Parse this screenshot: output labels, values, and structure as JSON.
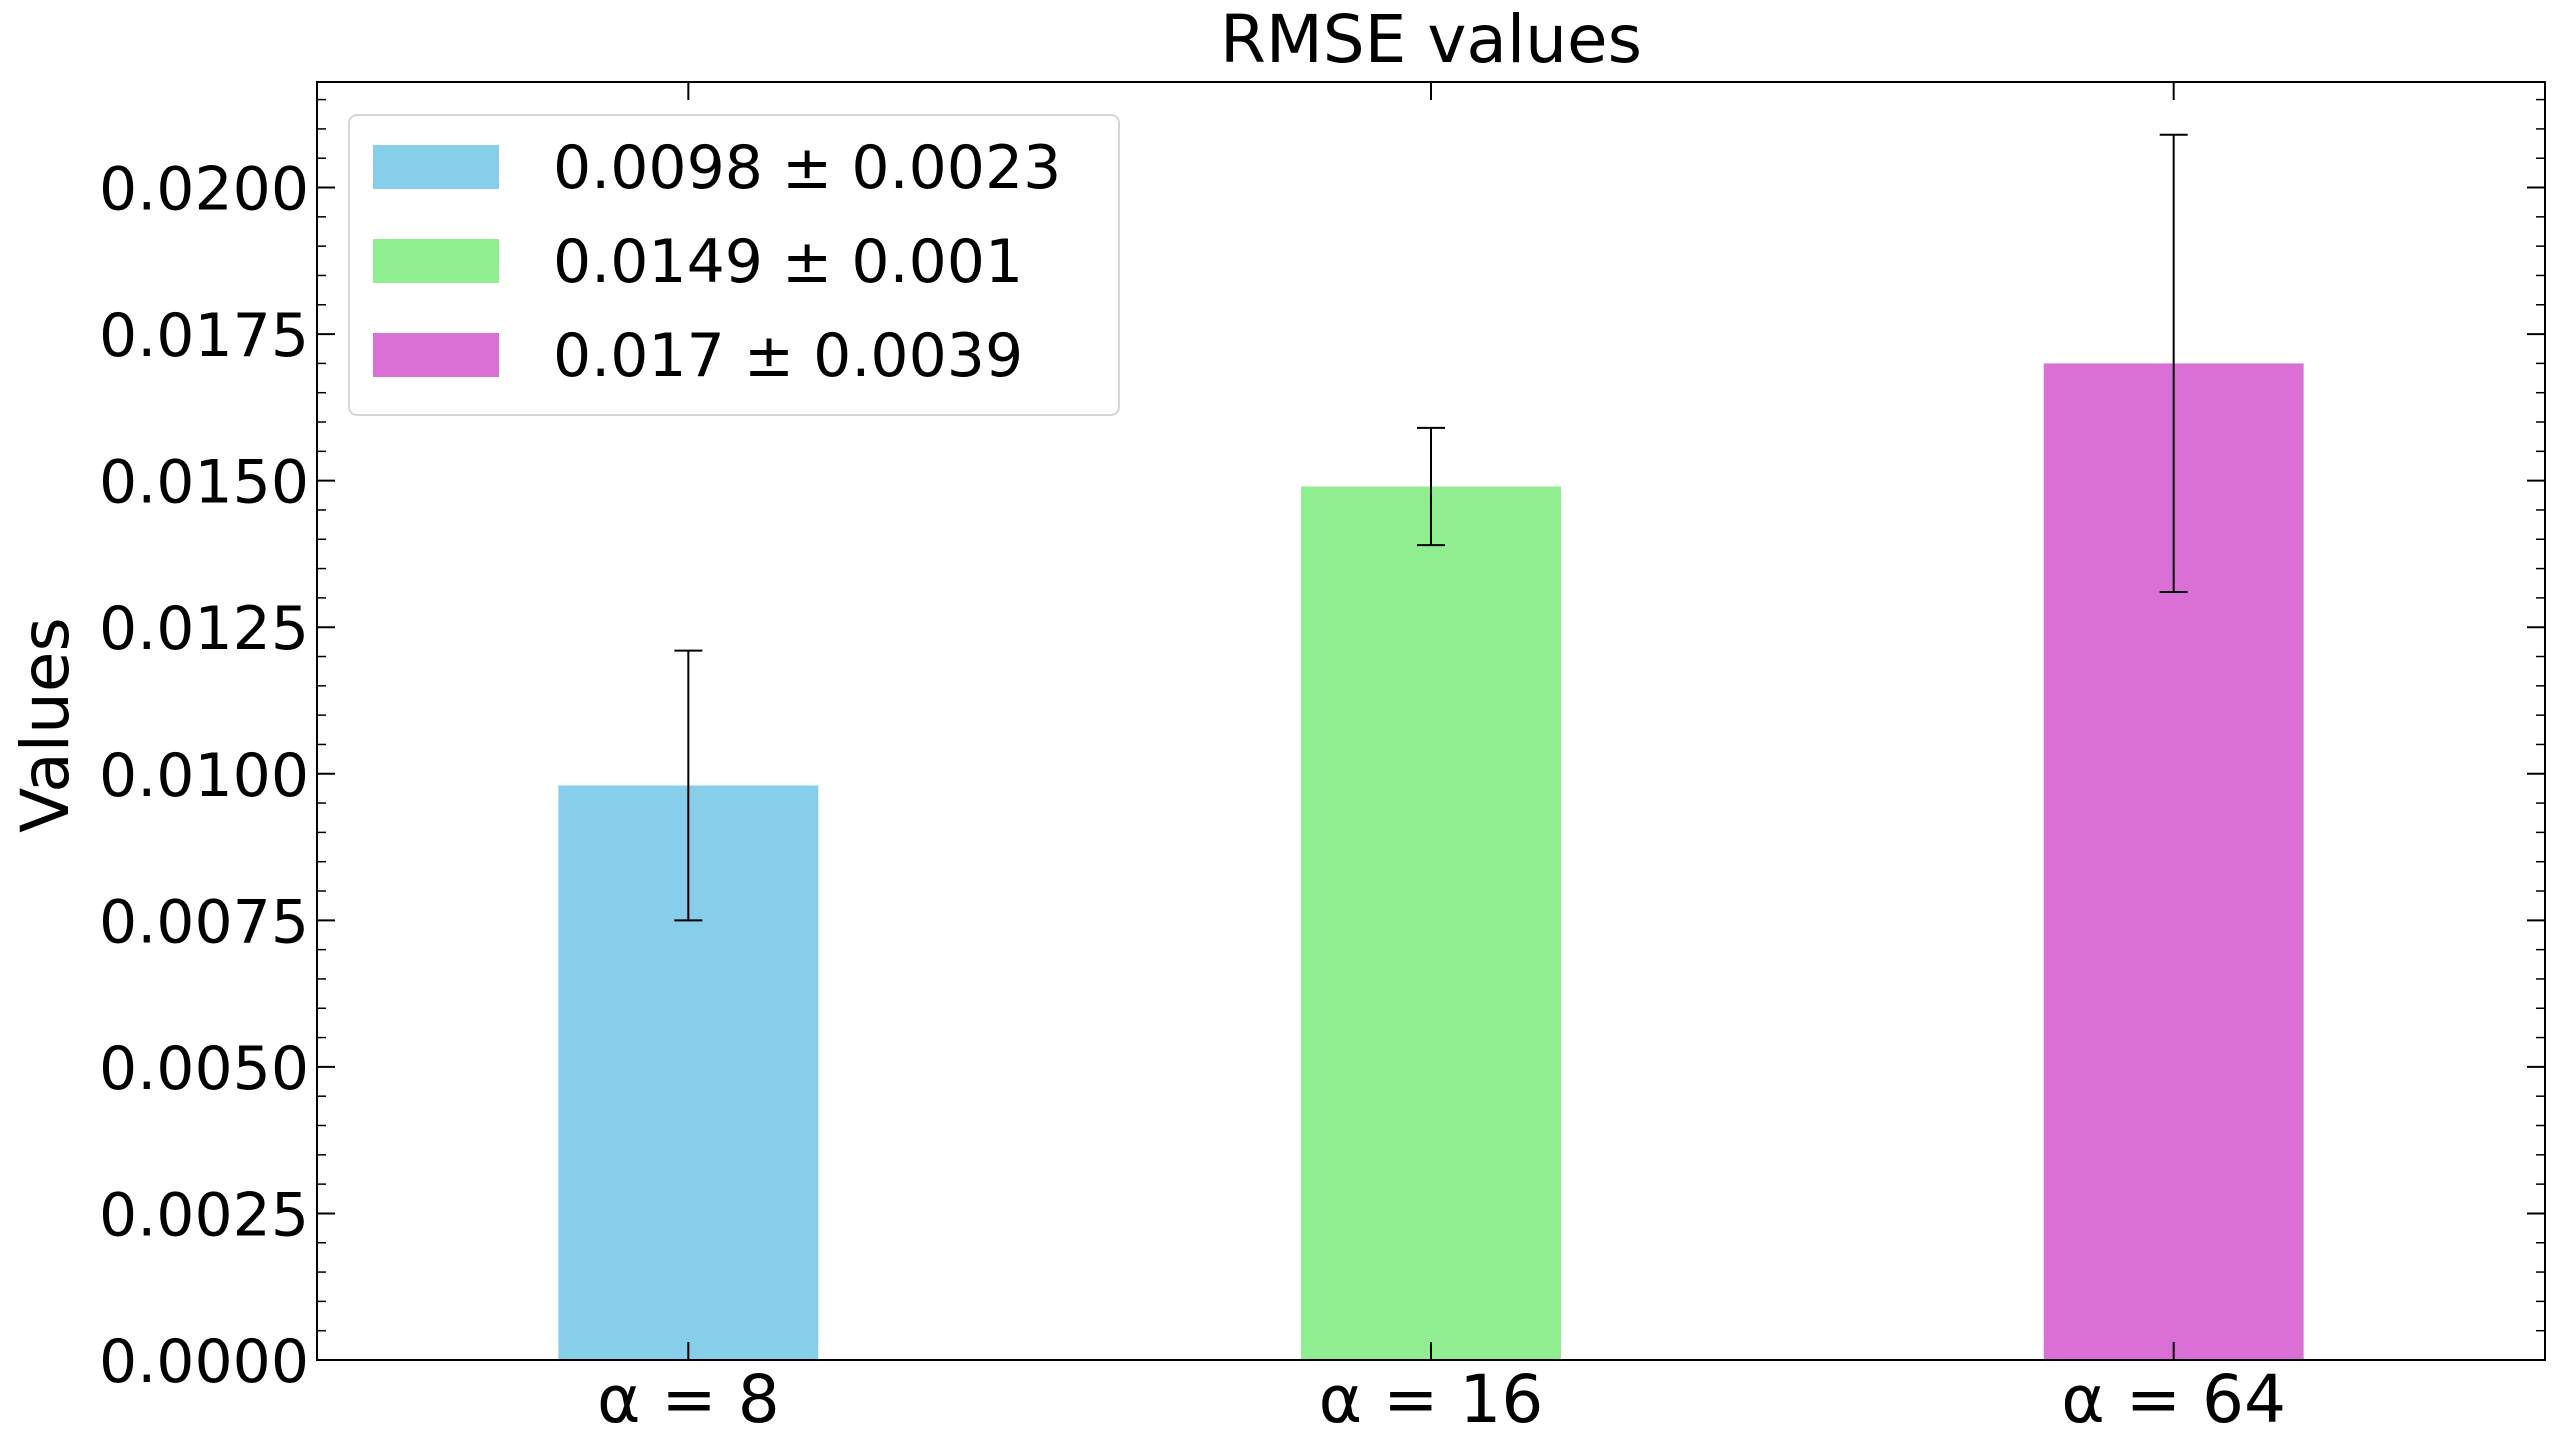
{
  "chart_data": {
    "type": "bar",
    "title": "RMSE values",
    "xlabel": "",
    "ylabel": "Values",
    "categories": [
      "α = 8",
      "α = 16",
      "α = 64"
    ],
    "values": [
      0.0098,
      0.0149,
      0.017
    ],
    "errors": [
      0.0023,
      0.001,
      0.0039
    ],
    "colors": [
      "#87CEEB",
      "#90EE90",
      "#DA70D6"
    ],
    "ylim": [
      0,
      0.0218
    ],
    "yticks": [
      0.0,
      0.0025,
      0.005,
      0.0075,
      0.01,
      0.0125,
      0.015,
      0.0175,
      0.02
    ],
    "ytick_labels": [
      "0.0000",
      "0.0025",
      "0.0050",
      "0.0075",
      "0.0100",
      "0.0125",
      "0.0150",
      "0.0175",
      "0.0200"
    ],
    "grid": false,
    "legend": {
      "placement": "top-left",
      "entries": [
        "0.0098 ± 0.0023",
        "0.0149 ± 0.001",
        "0.017 ± 0.0039"
      ]
    }
  }
}
